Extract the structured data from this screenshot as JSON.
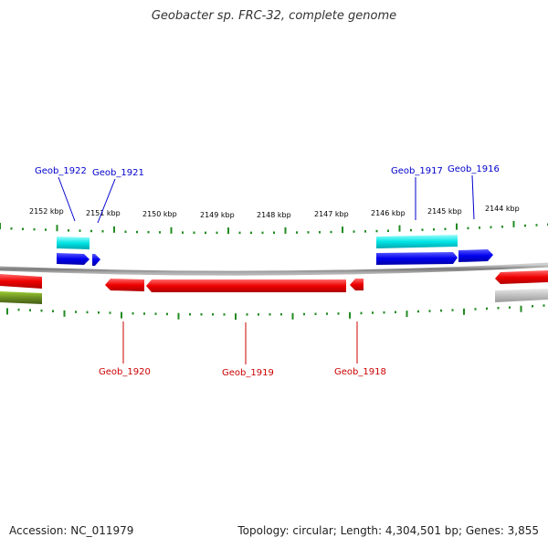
{
  "title": "Geobacter sp. FRC-32, complete genome",
  "footer": {
    "accession": "Accession: NC_011979",
    "stats": "Topology: circular; Length: 4,304,501 bp; Genes: 3,855"
  },
  "scale": {
    "unit": "kbp",
    "ticks": [
      {
        "kbp": 2152,
        "label": "2152 kbp"
      },
      {
        "kbp": 2151,
        "label": "2151 kbp"
      },
      {
        "kbp": 2150,
        "label": "2150 kbp"
      },
      {
        "kbp": 2149,
        "label": "2149 kbp"
      },
      {
        "kbp": 2148,
        "label": "2148 kbp"
      },
      {
        "kbp": 2147,
        "label": "2147 kbp"
      },
      {
        "kbp": 2146,
        "label": "2146 kbp"
      },
      {
        "kbp": 2145,
        "label": "2145 kbp"
      },
      {
        "kbp": 2144,
        "label": "2144 kbp"
      }
    ]
  },
  "gene_labels": [
    {
      "id": "g1922",
      "text": "Geob_1922",
      "color": "#0000cc"
    },
    {
      "id": "g1921",
      "text": "Geob_1921",
      "color": "#0000cc"
    },
    {
      "id": "g1917",
      "text": "Geob_1917",
      "color": "#0000cc"
    },
    {
      "id": "g1916",
      "text": "Geob_1916",
      "color": "#0000cc"
    },
    {
      "id": "g1920",
      "text": "Geob_1920",
      "color": "#cc0000"
    },
    {
      "id": "g1919",
      "text": "Geob_1919",
      "color": "#cc0000"
    },
    {
      "id": "g1918",
      "text": "Geob_1918",
      "color": "#cc0000"
    }
  ],
  "colors": {
    "forward_gene": "#0000ee",
    "reverse_gene": "#ee0000",
    "forward_feature": "#00e5e5",
    "olive_feature": "#6b8e23",
    "gray_feature": "#c0c0c0",
    "backbone": "#888888",
    "tick": "#228b22",
    "label": "#000000"
  }
}
